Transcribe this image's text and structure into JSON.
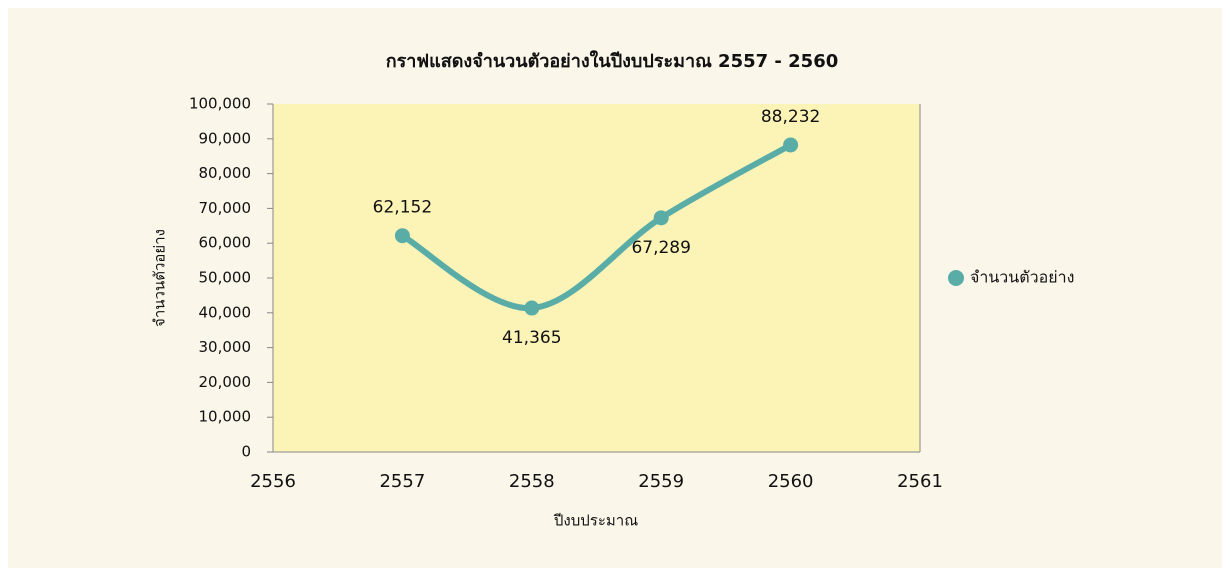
{
  "chart_data": {
    "type": "line",
    "title": "กราฟแสดงจำนวนตัวอย่างในปีงบประมาณ 2557 - 2560",
    "x_label": "ปีงบประมาณ",
    "y_label": "จำนวนตัวอย่าง",
    "x": [
      2557,
      2558,
      2559,
      2560
    ],
    "series": [
      {
        "name": "จำนวนตัวอย่าง",
        "color": "#5aada7",
        "values": [
          62152,
          41365,
          67289,
          88232
        ],
        "value_labels": [
          "62,152",
          "41,365",
          "67,289",
          "88,232"
        ]
      }
    ],
    "xlim": [
      2556,
      2561
    ],
    "xticks": [
      2556,
      2557,
      2558,
      2559,
      2560,
      2561
    ],
    "ylim": [
      0,
      100000
    ],
    "yticks": [
      0,
      {
        "value": 10000,
        "label": "10,000"
      },
      {
        "value": 20000,
        "label": "20,000"
      },
      {
        "value": 30000,
        "label": "30,000"
      },
      {
        "value": 40000,
        "label": "40,000"
      },
      {
        "value": 50000,
        "label": "50,000"
      },
      {
        "value": 60000,
        "label": "60,000"
      },
      {
        "value": 70000,
        "label": "70,000"
      },
      {
        "value": 80000,
        "label": "80,000"
      },
      {
        "value": 90000,
        "label": "90,000"
      },
      {
        "value": 100000,
        "label": "100,000"
      }
    ],
    "legend": "right",
    "smooth": true
  }
}
